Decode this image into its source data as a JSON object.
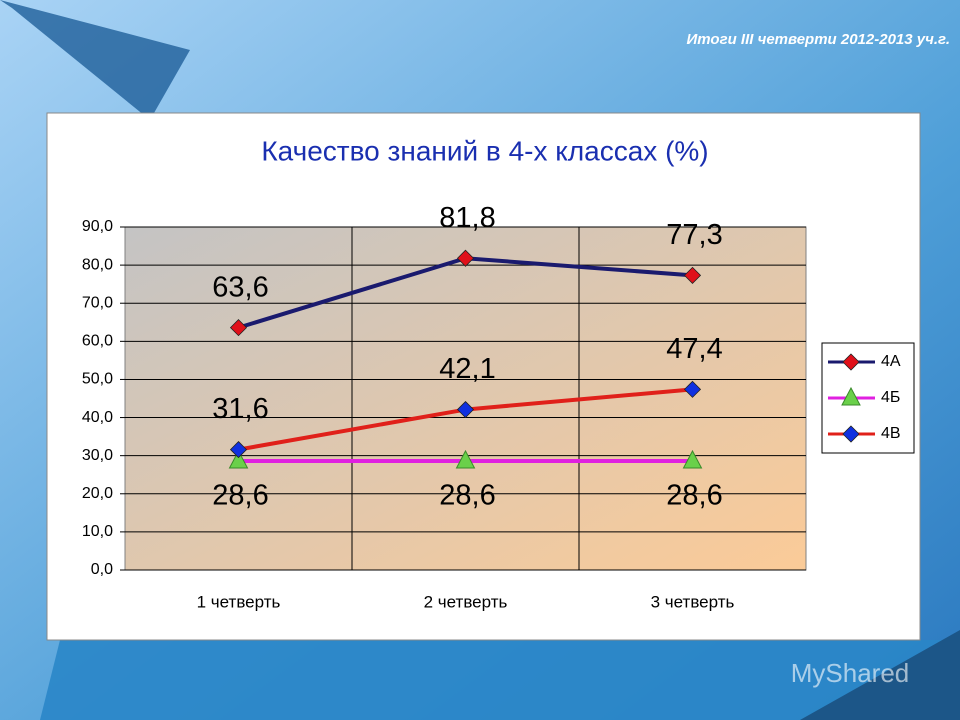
{
  "header": {
    "title": "Итоги III четверти 2012-2013 уч.г."
  },
  "watermark": "MyShared",
  "chart_data": {
    "type": "line",
    "title": "Качество знаний в 4-х классах (%)",
    "categories": [
      "1 четверть",
      "2 четверть",
      "3 четверть"
    ],
    "series": [
      {
        "name": "4А",
        "color": "#1a1a6e",
        "marker": "diamond",
        "marker_color": "#e0101a",
        "values": [
          63.6,
          81.8,
          77.3
        ],
        "value_labels": [
          "63,6",
          "81,8",
          "77,3"
        ],
        "label_side": "above"
      },
      {
        "name": "4Б",
        "color": "#e020e0",
        "marker": "triangle",
        "marker_color": "#6ad04a",
        "values": [
          28.6,
          28.6,
          28.6
        ],
        "value_labels": [
          "28,6",
          "28,6",
          "28,6"
        ],
        "label_side": "below"
      },
      {
        "name": "4В",
        "color": "#e0201a",
        "marker": "diamond",
        "marker_color": "#1030e0",
        "values": [
          31.6,
          42.1,
          47.4
        ],
        "value_labels": [
          "31,6",
          "42,1",
          "47,4"
        ],
        "label_side": "above"
      }
    ],
    "ylim": [
      0,
      90
    ],
    "yticks": [
      {
        "value": 0,
        "label": "0,0"
      },
      {
        "value": 10,
        "label": "10,0"
      },
      {
        "value": 20,
        "label": "20,0"
      },
      {
        "value": 30,
        "label": "30,0"
      },
      {
        "value": 40,
        "label": "40,0"
      },
      {
        "value": 50,
        "label": "50,0"
      },
      {
        "value": 60,
        "label": "60,0"
      },
      {
        "value": 70,
        "label": "70,0"
      },
      {
        "value": 80,
        "label": "80,0"
      },
      {
        "value": 90,
        "label": "90,0"
      }
    ],
    "grid": true,
    "legend": "right"
  }
}
